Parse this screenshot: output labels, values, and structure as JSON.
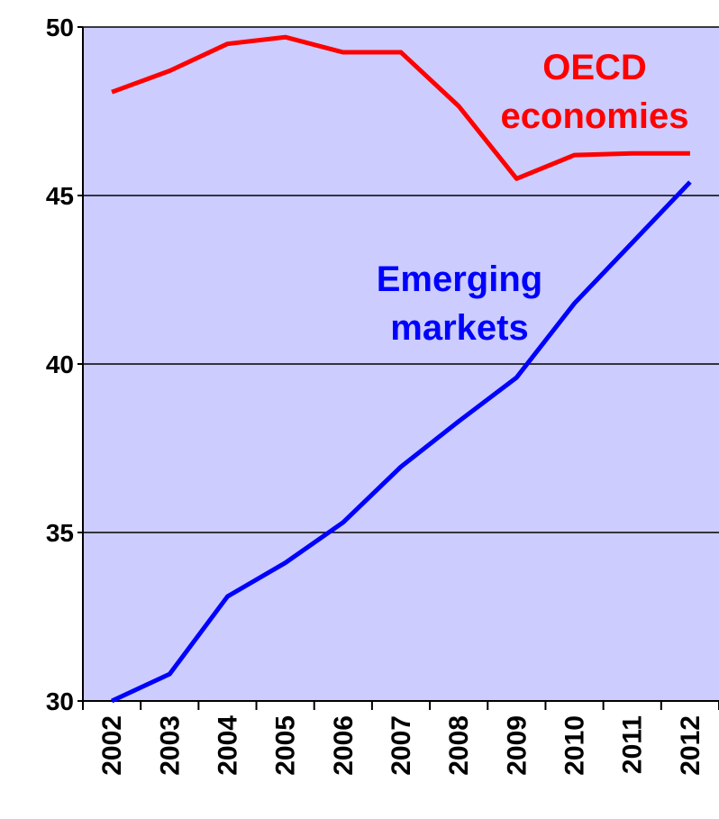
{
  "chart_data": {
    "type": "line",
    "categories": [
      "2002",
      "2003",
      "2004",
      "2005",
      "2006",
      "2007",
      "2008",
      "2009",
      "2010",
      "2011",
      "2012"
    ],
    "series": [
      {
        "name": "OECD economies",
        "color": "#ff0000",
        "values": [
          48.07,
          48.7,
          49.5,
          49.7,
          49.25,
          49.25,
          47.65,
          45.5,
          46.2,
          46.25,
          46.25
        ]
      },
      {
        "name": "Emerging markets",
        "color": "#0000ff",
        "values": [
          30.0,
          30.8,
          33.1,
          34.1,
          35.3,
          36.95,
          38.3,
          39.6,
          41.8,
          43.6,
          45.4
        ]
      }
    ],
    "ylim": [
      30,
      50
    ],
    "yticks": [
      30,
      35,
      40,
      45,
      50
    ],
    "grid": true,
    "background": "#ccccff"
  }
}
